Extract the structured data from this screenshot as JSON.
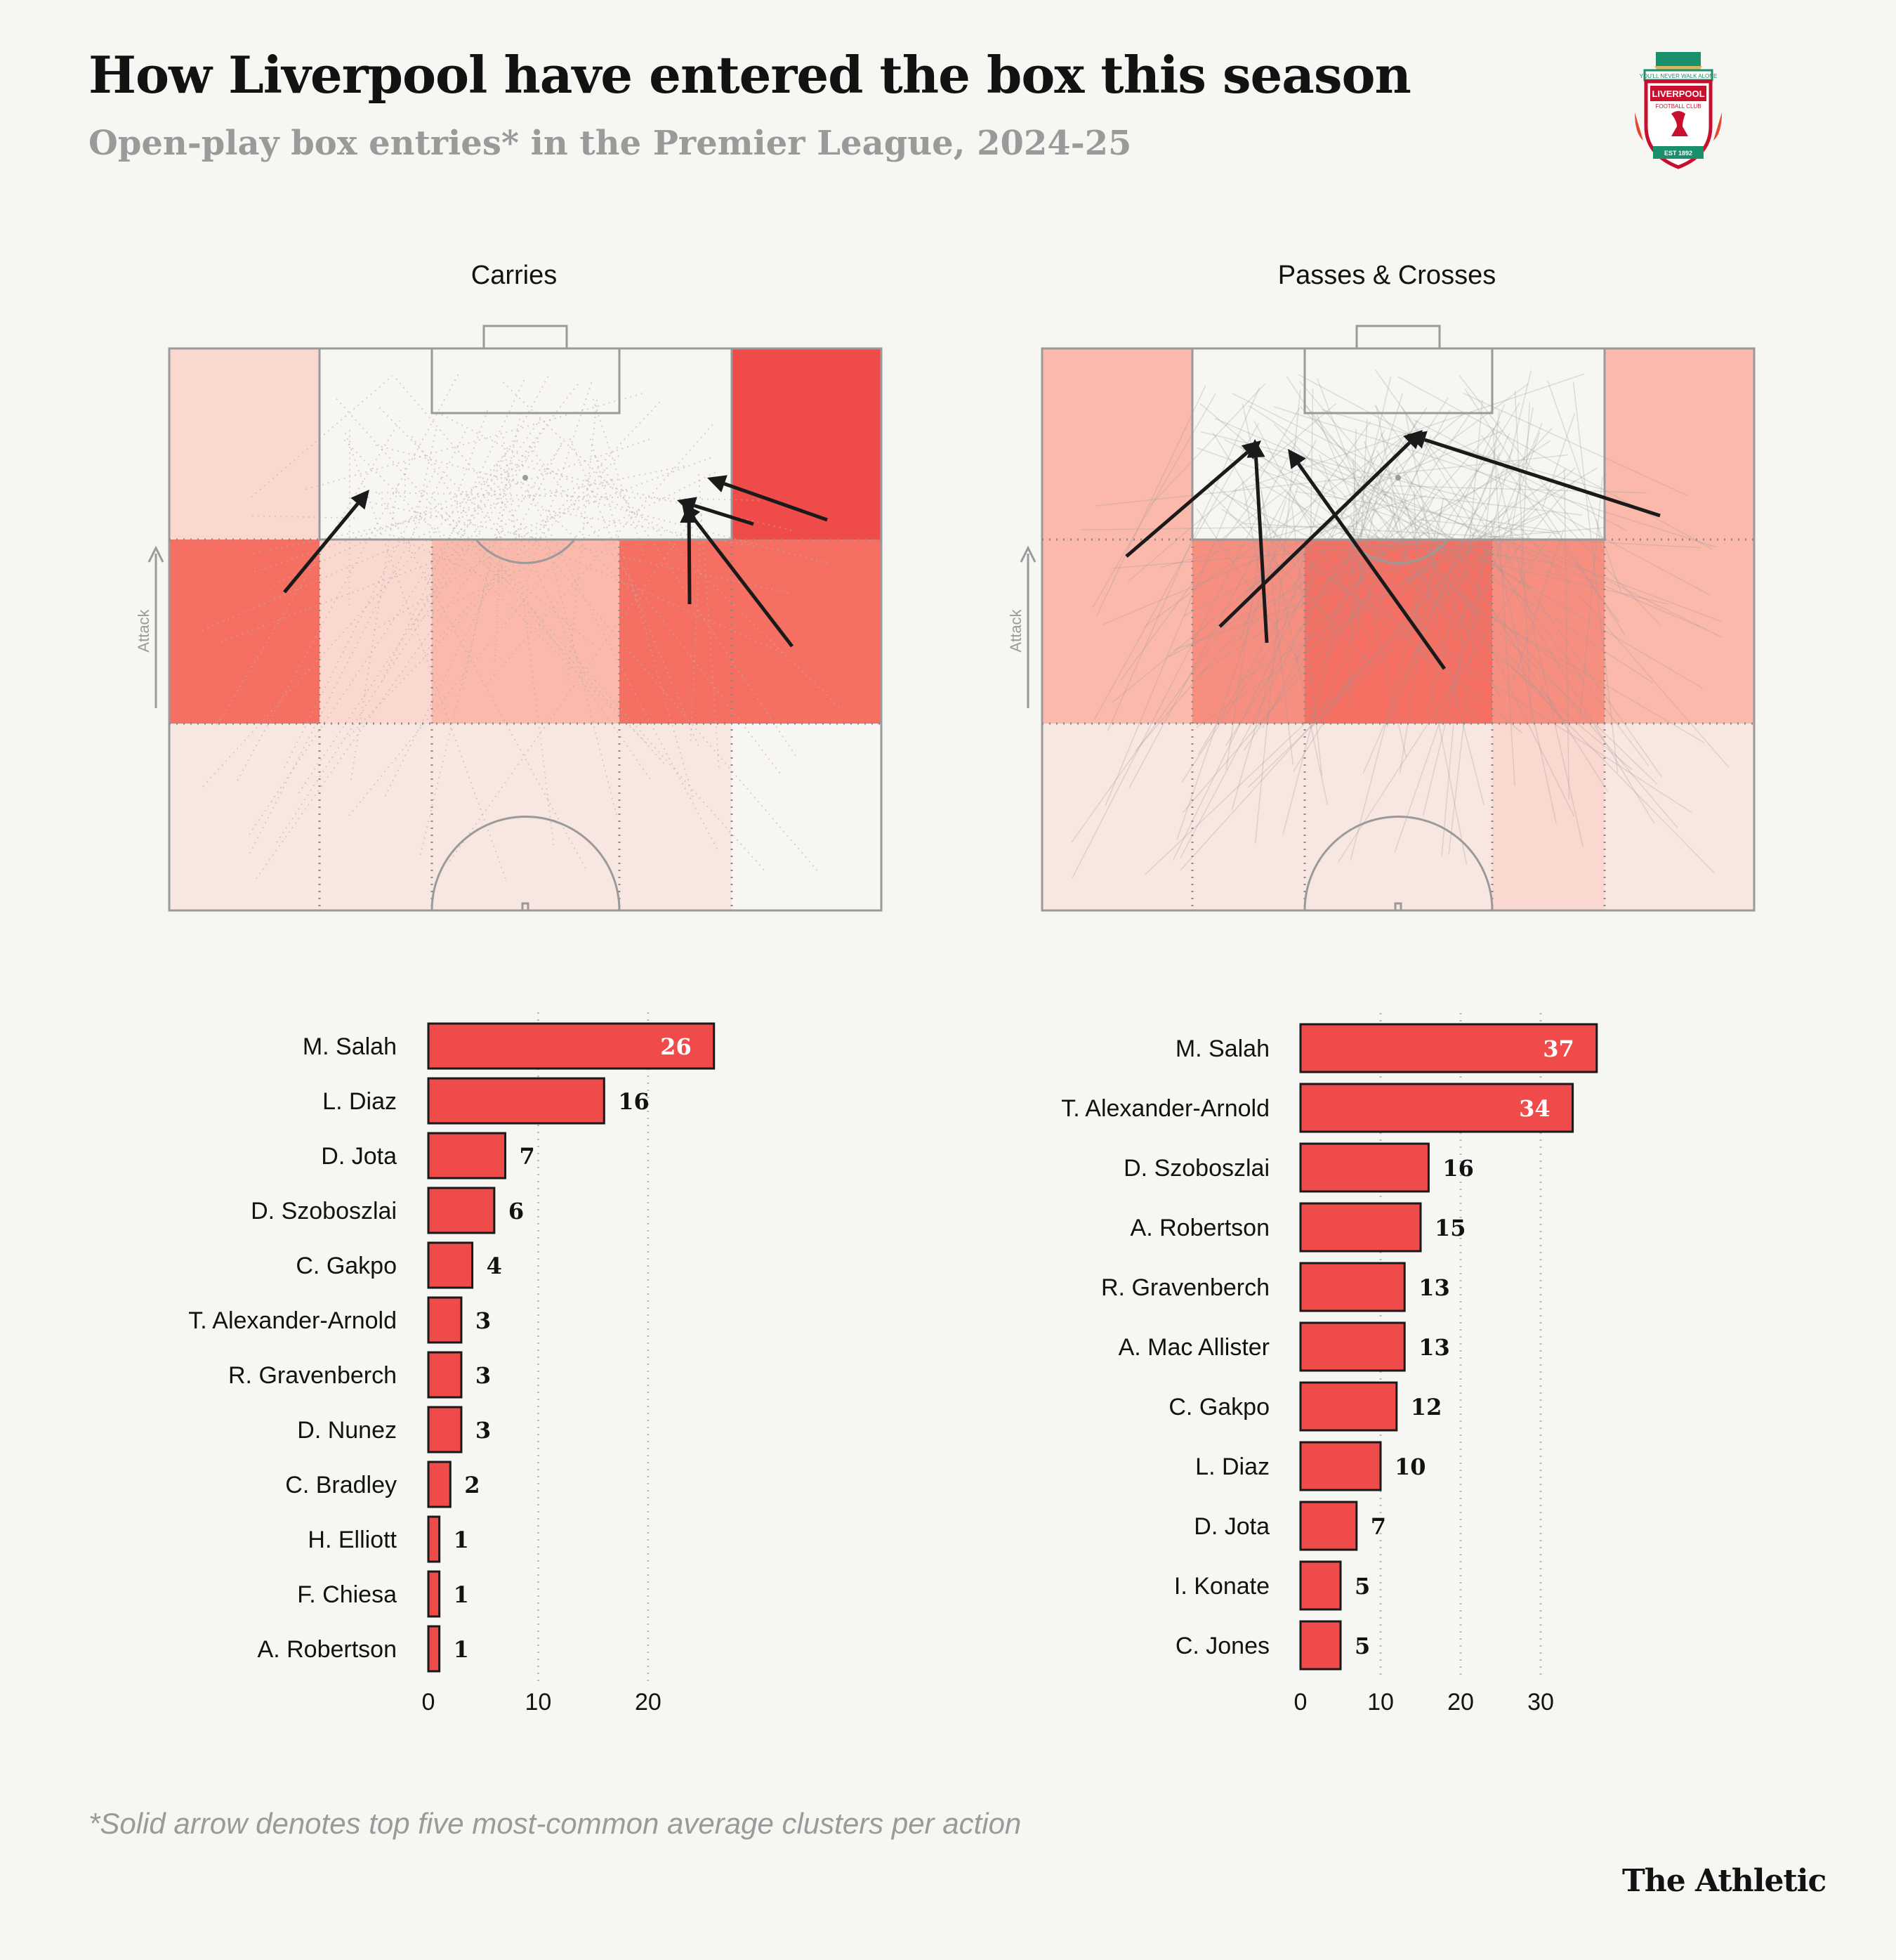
{
  "header": {
    "title": "How Liverpool have entered the box this season",
    "subtitle": "Open-play box entries* in the Premier League, 2024-25"
  },
  "crest": {
    "top_ribbon": "YOU'LL NEVER WALK ALONE",
    "name": "LIVERPOOL",
    "sub": "FOOTBALL CLUB",
    "est": "EST 1892"
  },
  "footnote": "*Solid arrow denotes top five most-common average clusters per action",
  "brand": "The Athletic",
  "colors": {
    "background": "#f6f6f3",
    "bar": "#f04b4b",
    "heat_levels": [
      "#f7f6f2",
      "#f8e7e1",
      "#fad8d0",
      "#fbb9ab",
      "#f78f80",
      "#f56f62",
      "#f04b4b"
    ]
  },
  "chart_data": [
    {
      "type": "heatmap",
      "title": "Carries",
      "axis_label": "Attack",
      "columns": 5,
      "rows": 3,
      "zone_intensity": [
        [
          2,
          0,
          0,
          0,
          6
        ],
        [
          5,
          2,
          3,
          5,
          5
        ],
        [
          1,
          1,
          1,
          1,
          0
        ]
      ],
      "top_clusters": 5
    },
    {
      "type": "heatmap",
      "title": "Passes & Crosses",
      "axis_label": "Attack",
      "columns": 5,
      "rows": 3,
      "zone_intensity": [
        [
          3,
          0,
          0,
          0,
          3
        ],
        [
          3,
          4,
          5,
          4,
          3
        ],
        [
          1,
          1,
          1,
          2,
          1
        ]
      ],
      "top_clusters": 5
    },
    {
      "type": "bar",
      "orientation": "horizontal",
      "title": "Carries",
      "categories": [
        "M. Salah",
        "L. Diaz",
        "D. Jota",
        "D. Szoboszlai",
        "C. Gakpo",
        "T. Alexander-Arnold",
        "R. Gravenberch",
        "D. Nunez",
        "C. Bradley",
        "H. Elliott",
        "F. Chiesa",
        "A. Robertson"
      ],
      "values": [
        26,
        16,
        7,
        6,
        4,
        3,
        3,
        3,
        2,
        1,
        1,
        1
      ],
      "xlim": [
        0,
        28
      ],
      "ticks": [
        0,
        10,
        20
      ]
    },
    {
      "type": "bar",
      "orientation": "horizontal",
      "title": "Passes & Crosses",
      "categories": [
        "M. Salah",
        "T. Alexander-Arnold",
        "D. Szoboszlai",
        "A. Robertson",
        "R. Gravenberch",
        "A. Mac Allister",
        "C. Gakpo",
        "L. Diaz",
        "D. Jota",
        "I. Konate",
        "C. Jones"
      ],
      "values": [
        37,
        34,
        16,
        15,
        13,
        13,
        12,
        10,
        7,
        5,
        5
      ],
      "xlim": [
        0,
        40
      ],
      "ticks": [
        0,
        10,
        20,
        30
      ]
    }
  ]
}
